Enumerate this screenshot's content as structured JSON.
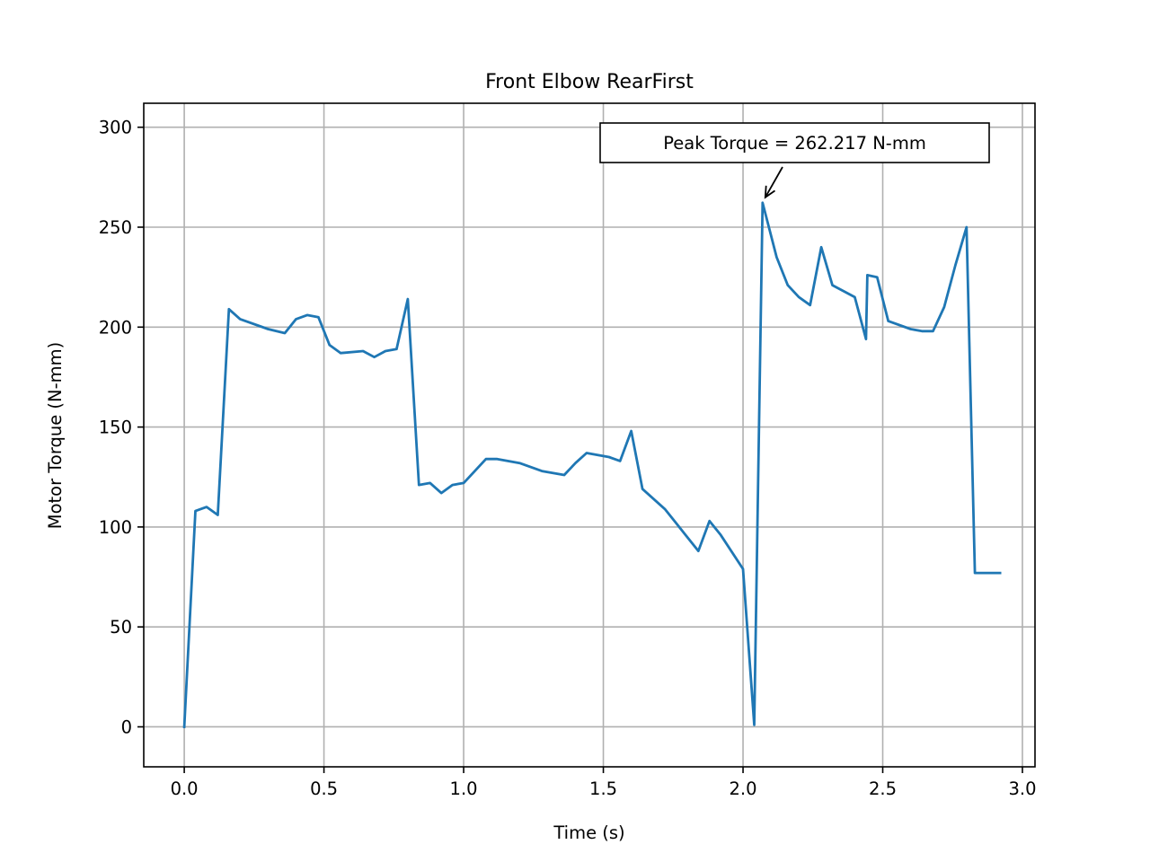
{
  "chart_data": {
    "type": "line",
    "title": "Front Elbow RearFirst",
    "xlabel": "Time (s)",
    "ylabel": "Motor Torque (N-mm)",
    "xlim": [
      -0.145,
      3.045
    ],
    "ylim": [
      -20,
      312
    ],
    "xticks": [
      0.0,
      0.5,
      1.0,
      1.5,
      2.0,
      2.5,
      3.0
    ],
    "xtick_labels": [
      "0.0",
      "0.5",
      "1.0",
      "1.5",
      "2.0",
      "2.5",
      "3.0"
    ],
    "yticks": [
      0,
      50,
      100,
      150,
      200,
      250,
      300
    ],
    "ytick_labels": [
      "0",
      "50",
      "100",
      "150",
      "200",
      "250",
      "300"
    ],
    "grid": true,
    "series": [
      {
        "color": "#1f77b4",
        "x": [
          0.0,
          0.04,
          0.08,
          0.12,
          0.16,
          0.2,
          0.3,
          0.36,
          0.4,
          0.44,
          0.48,
          0.52,
          0.56,
          0.64,
          0.68,
          0.72,
          0.76,
          0.8,
          0.84,
          0.88,
          0.92,
          0.96,
          1.0,
          1.08,
          1.12,
          1.2,
          1.28,
          1.36,
          1.4,
          1.44,
          1.48,
          1.52,
          1.56,
          1.6,
          1.64,
          1.72,
          1.76,
          1.8,
          1.84,
          1.88,
          1.92,
          2.0,
          2.04,
          2.07,
          2.12,
          2.16,
          2.2,
          2.24,
          2.28,
          2.32,
          2.4,
          2.44,
          2.445,
          2.48,
          2.52,
          2.6,
          2.64,
          2.68,
          2.72,
          2.76,
          2.8,
          2.83,
          2.92
        ],
        "y": [
          0,
          108,
          110,
          106,
          209,
          204,
          199,
          197,
          204,
          206,
          205,
          191,
          187,
          188,
          185,
          188,
          189,
          214,
          121,
          122,
          117,
          121,
          122,
          134,
          134,
          132,
          128,
          126,
          132,
          137,
          136,
          135,
          133,
          148,
          119,
          109,
          102,
          95,
          88,
          103,
          96,
          79,
          1,
          262.217,
          235,
          221,
          215,
          211,
          240,
          221,
          215,
          194,
          226,
          225,
          203,
          199,
          198,
          198,
          210,
          231,
          250,
          77,
          77
        ]
      }
    ],
    "annotations": [
      {
        "text": "Peak Torque = 262.217 N-mm",
        "x": 2.07,
        "y": 262.217
      }
    ]
  }
}
